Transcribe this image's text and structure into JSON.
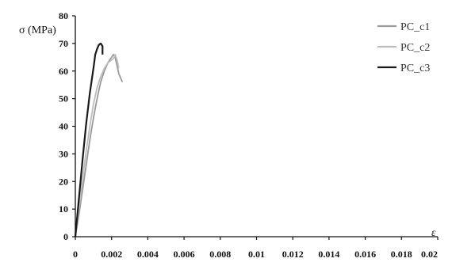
{
  "chart_data": {
    "type": "line",
    "title": "",
    "xlabel": "ε",
    "ylabel": "σ (MPa)",
    "xlim": [
      0,
      0.02
    ],
    "ylim": [
      0,
      80
    ],
    "x_ticks": [
      0,
      0.002,
      0.004,
      0.006,
      0.008,
      0.01,
      0.012,
      0.014,
      0.016,
      0.018,
      0.02
    ],
    "x_tick_labels": [
      "0",
      "0.002",
      "0.004",
      "0.006",
      "0.008",
      "0.01",
      "0.012",
      "0.014",
      "0.016",
      "0.018",
      "0.02"
    ],
    "y_ticks": [
      0,
      10,
      20,
      30,
      40,
      50,
      60,
      70,
      80
    ],
    "y_tick_labels": [
      "0",
      "10",
      "20",
      "30",
      "40",
      "50",
      "60",
      "70",
      "80"
    ],
    "grid": false,
    "legend_position": "top-right",
    "series": [
      {
        "name": "PC_c1",
        "color": "#9a9a9a",
        "points": [
          [
            0,
            0
          ],
          [
            0.0002,
            8
          ],
          [
            0.0004,
            17
          ],
          [
            0.0006,
            26
          ],
          [
            0.0008,
            35
          ],
          [
            0.001,
            43
          ],
          [
            0.0012,
            50
          ],
          [
            0.0014,
            56
          ],
          [
            0.0016,
            60
          ],
          [
            0.0018,
            63
          ],
          [
            0.002,
            65
          ],
          [
            0.0021,
            66
          ],
          [
            0.0022,
            65
          ],
          [
            0.0024,
            59
          ],
          [
            0.0026,
            56
          ]
        ]
      },
      {
        "name": "PC_c2",
        "color": "#bdbdbd",
        "points": [
          [
            0,
            0
          ],
          [
            0.0002,
            10
          ],
          [
            0.0004,
            21
          ],
          [
            0.0006,
            31
          ],
          [
            0.0008,
            40
          ],
          [
            0.001,
            48
          ],
          [
            0.0012,
            54
          ],
          [
            0.0014,
            58
          ],
          [
            0.0016,
            61
          ],
          [
            0.0018,
            63
          ],
          [
            0.002,
            64
          ],
          [
            0.0021,
            64.5
          ],
          [
            0.0022,
            66
          ],
          [
            0.0023,
            64
          ],
          [
            0.0024,
            61
          ]
        ]
      },
      {
        "name": "PC_c3",
        "color": "#1a1a1a",
        "points": [
          [
            0,
            0
          ],
          [
            0.0002,
            14
          ],
          [
            0.0004,
            28
          ],
          [
            0.0006,
            41
          ],
          [
            0.0008,
            52
          ],
          [
            0.001,
            61
          ],
          [
            0.0011,
            66
          ],
          [
            0.0012,
            68
          ],
          [
            0.0013,
            69.5
          ],
          [
            0.0014,
            70
          ],
          [
            0.0015,
            69
          ],
          [
            0.0015,
            66
          ]
        ]
      }
    ]
  }
}
